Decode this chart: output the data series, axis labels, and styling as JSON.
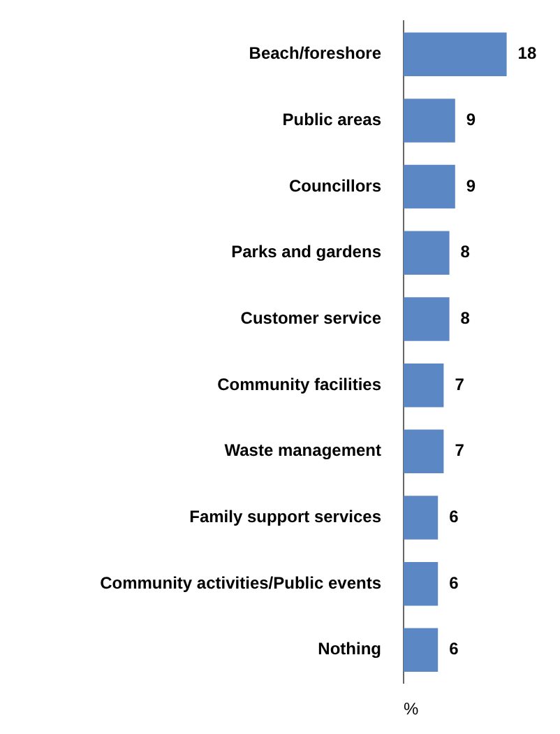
{
  "chart_data": {
    "type": "bar",
    "orientation": "horizontal",
    "xlabel": "%",
    "categories": [
      "Beach/foreshore",
      "Public areas",
      "Councillors",
      "Parks and gardens",
      "Customer service",
      "Community facilities",
      "Waste management",
      "Family support services",
      "Community activities/Public events",
      "Nothing"
    ],
    "values": [
      18,
      9,
      9,
      8,
      8,
      7,
      7,
      6,
      6,
      6
    ],
    "color": "#5b87c5",
    "tick_labels": "y",
    "data_labels": true,
    "grid": false,
    "legend": false
  }
}
